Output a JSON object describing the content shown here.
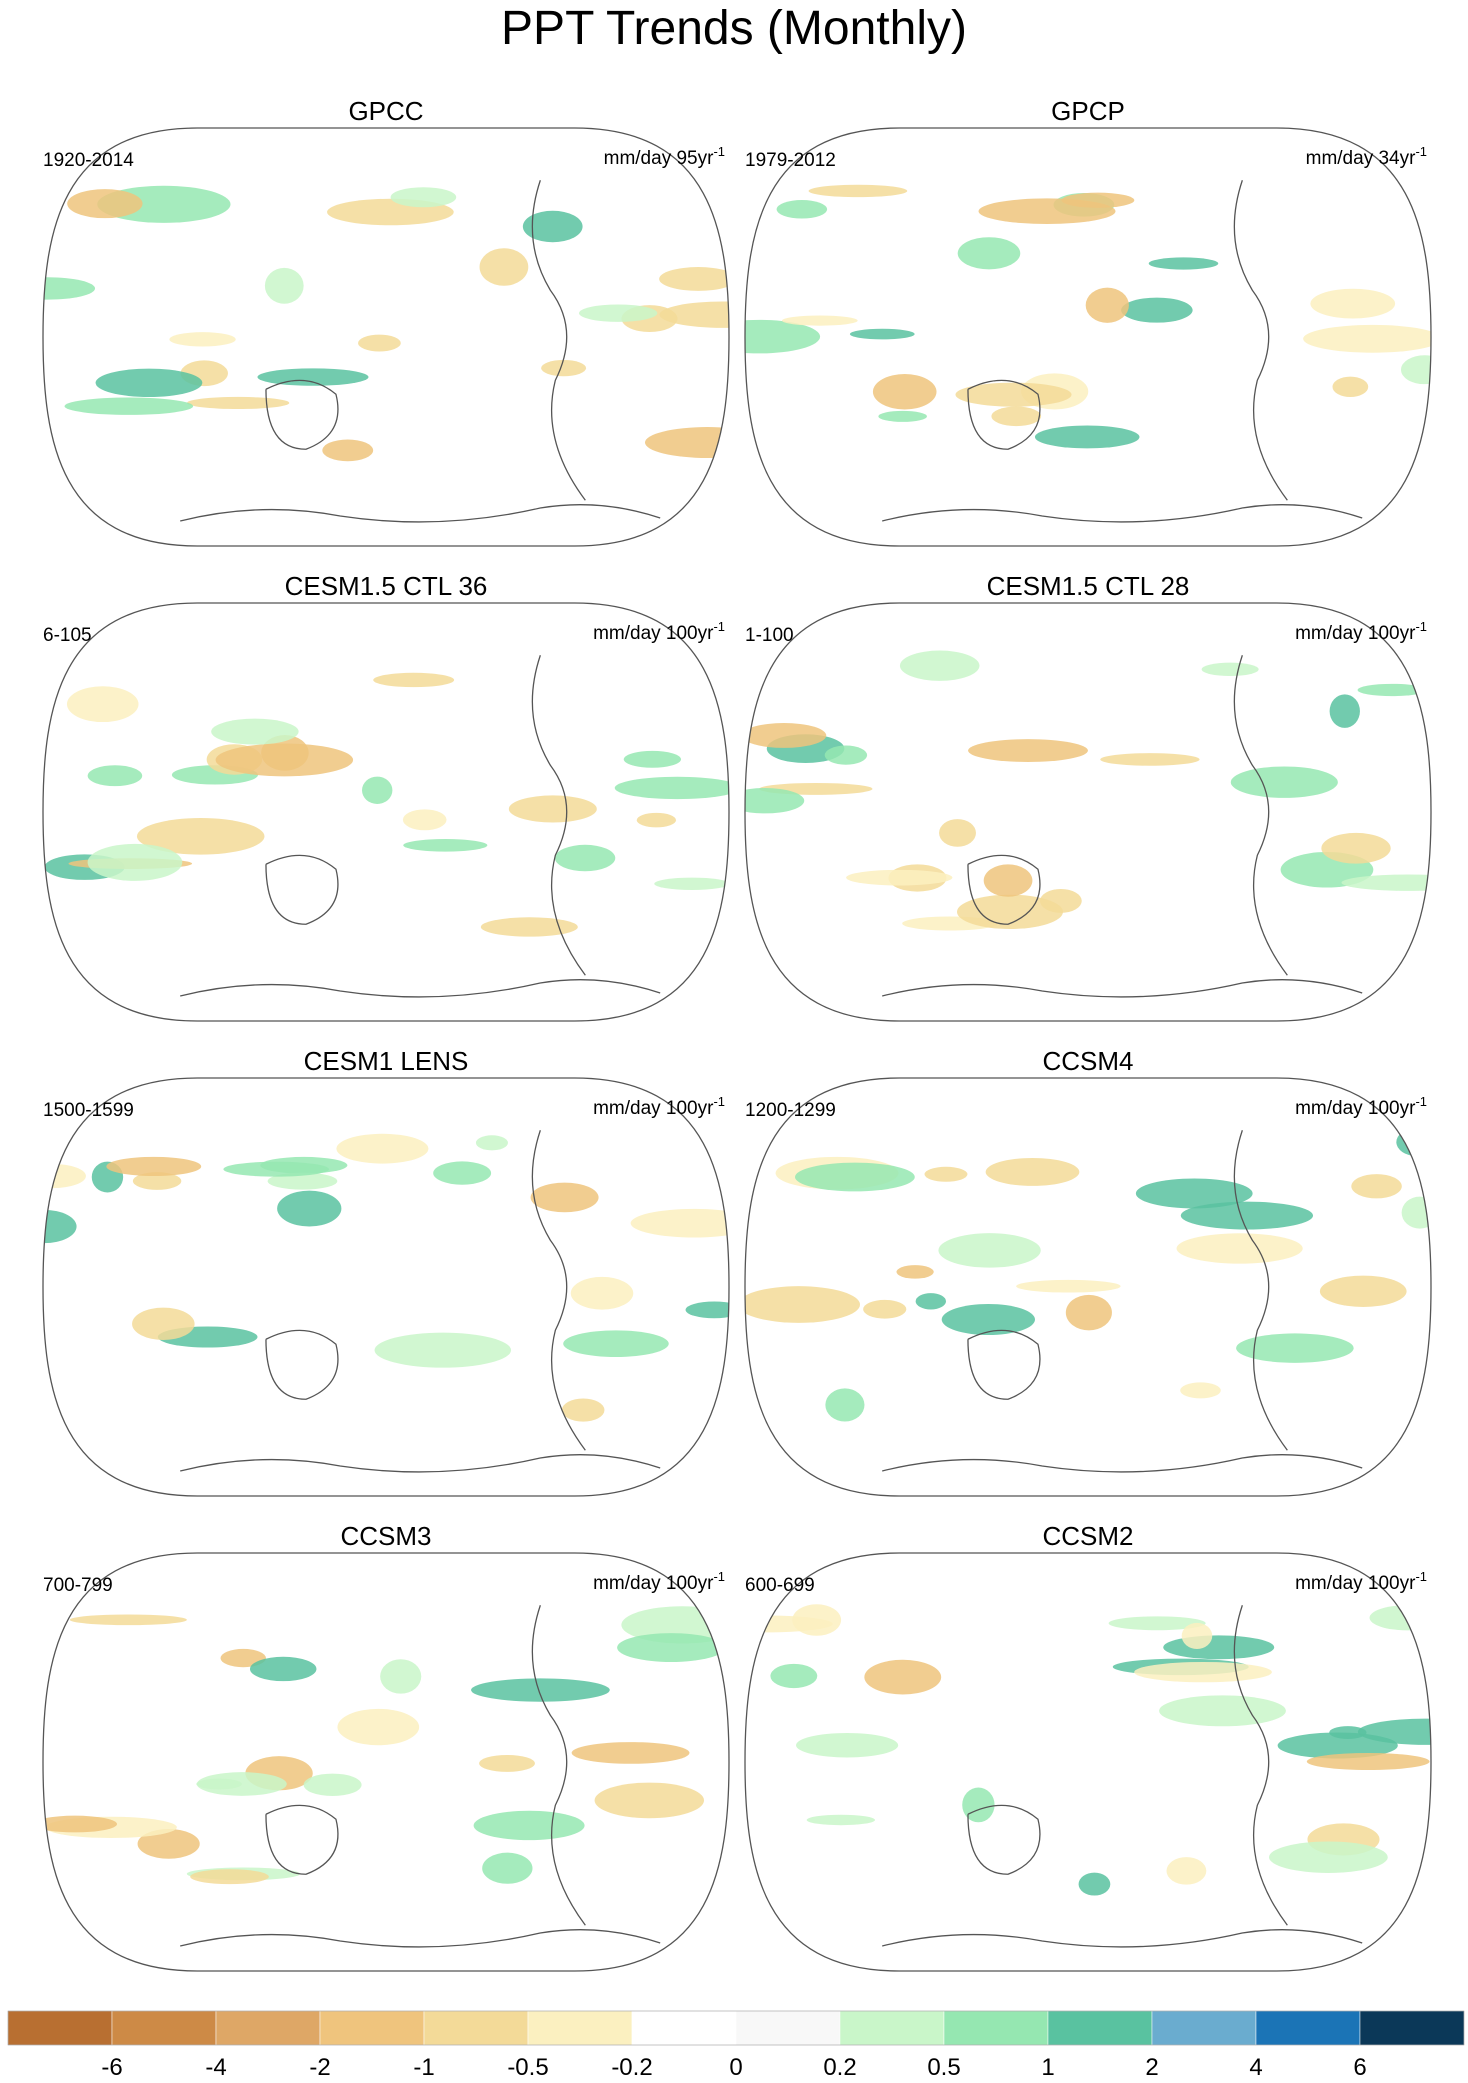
{
  "title": "PPT Trends (Monthly)",
  "panels": [
    {
      "title": "GPCC",
      "period": "1920-2014",
      "units": "mm/day 95yr",
      "units_exp": "-1"
    },
    {
      "title": "GPCP",
      "period": "1979-2012",
      "units": "mm/day 34yr",
      "units_exp": "-1"
    },
    {
      "title": "CESM1.5 CTL 36",
      "period": "6-105",
      "units": "mm/day 100yr",
      "units_exp": "-1"
    },
    {
      "title": "CESM1.5 CTL 28",
      "period": "1-100",
      "units": "mm/day 100yr",
      "units_exp": "-1"
    },
    {
      "title": "CESM1 LENS",
      "period": "1500-1599",
      "units": "mm/day 100yr",
      "units_exp": "-1"
    },
    {
      "title": "CCSM4",
      "period": "1200-1299",
      "units": "mm/day 100yr",
      "units_exp": "-1"
    },
    {
      "title": "CCSM3",
      "period": "700-799",
      "units": "mm/day 100yr",
      "units_exp": "-1"
    },
    {
      "title": "CCSM2",
      "period": "600-699",
      "units": "mm/day 100yr",
      "units_exp": "-1"
    }
  ],
  "colorbar": {
    "colors": [
      "#b86f31",
      "#cd8a46",
      "#dea766",
      "#efc47d",
      "#f3da98",
      "#fbf0c0",
      "#ffffff",
      "#f8f8f8",
      "#c9f6c9",
      "#95e7b1",
      "#59c2a0",
      "#6aaccf",
      "#1b74b6",
      "#0b3858"
    ],
    "levels": [
      -6,
      -4,
      -2,
      -1,
      -0.5,
      -0.2,
      0,
      0.2,
      0.5,
      1,
      2,
      4,
      6
    ]
  }
}
